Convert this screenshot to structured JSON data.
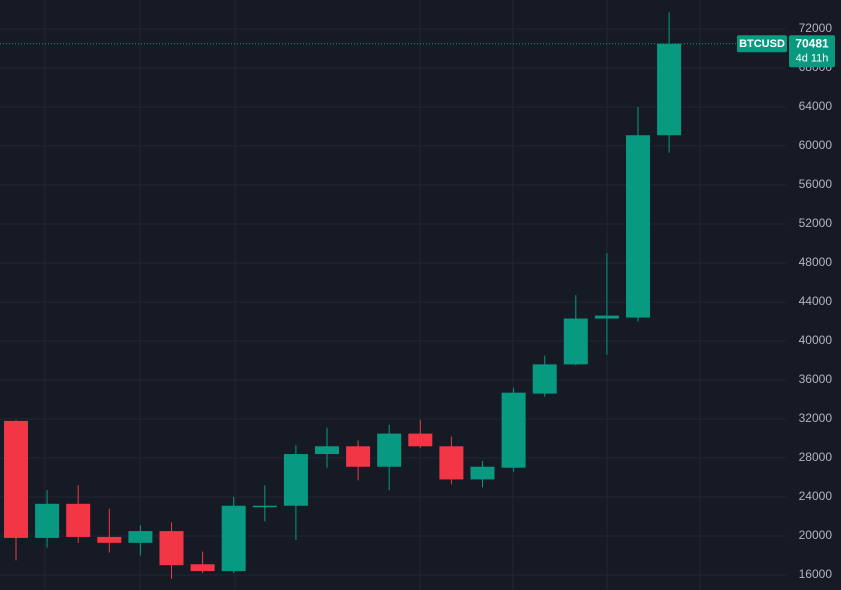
{
  "chart_data": {
    "type": "candlestick",
    "symbol": "BTCUSD",
    "countdown": "4d 11h",
    "up_color": "#089981",
    "down_color": "#f23645",
    "categories": [
      null,
      null,
      null,
      null,
      null,
      null,
      null,
      null,
      null,
      null,
      null,
      null,
      null,
      null,
      null,
      null,
      null,
      null,
      null,
      null,
      null,
      null
    ],
    "open": [
      31800,
      19800,
      23300,
      19900,
      19300,
      20500,
      17100,
      16400,
      23000,
      23100,
      28400,
      29200,
      27100,
      30500,
      29200,
      25800,
      27000,
      34600,
      37600,
      42300,
      42400,
      61100
    ],
    "high": [
      31900,
      24700,
      25200,
      22800,
      21100,
      21400,
      18400,
      24000,
      25200,
      29300,
      31100,
      29800,
      31400,
      31900,
      30200,
      27700,
      35200,
      38500,
      44700,
      49000,
      64000,
      73700
    ],
    "low": [
      17500,
      18800,
      19300,
      18300,
      18000,
      15600,
      16200,
      16200,
      21500,
      19600,
      27000,
      25700,
      24700,
      29000,
      25300,
      25000,
      26600,
      34300,
      37500,
      38600,
      42000,
      59300
    ],
    "close": [
      19800,
      23300,
      19900,
      19300,
      20500,
      17000,
      16400,
      23100,
      23100,
      28400,
      29200,
      27100,
      30500,
      29200,
      25800,
      27100,
      34700,
      37600,
      42300,
      42600,
      61100,
      70481
    ],
    "ylim": [
      14460,
      74970
    ],
    "yticks": [
      16000,
      20000,
      24000,
      28000,
      32000,
      36000,
      40000,
      44000,
      48000,
      52000,
      56000,
      60000,
      64000,
      68000,
      72000
    ],
    "grid": true
  }
}
